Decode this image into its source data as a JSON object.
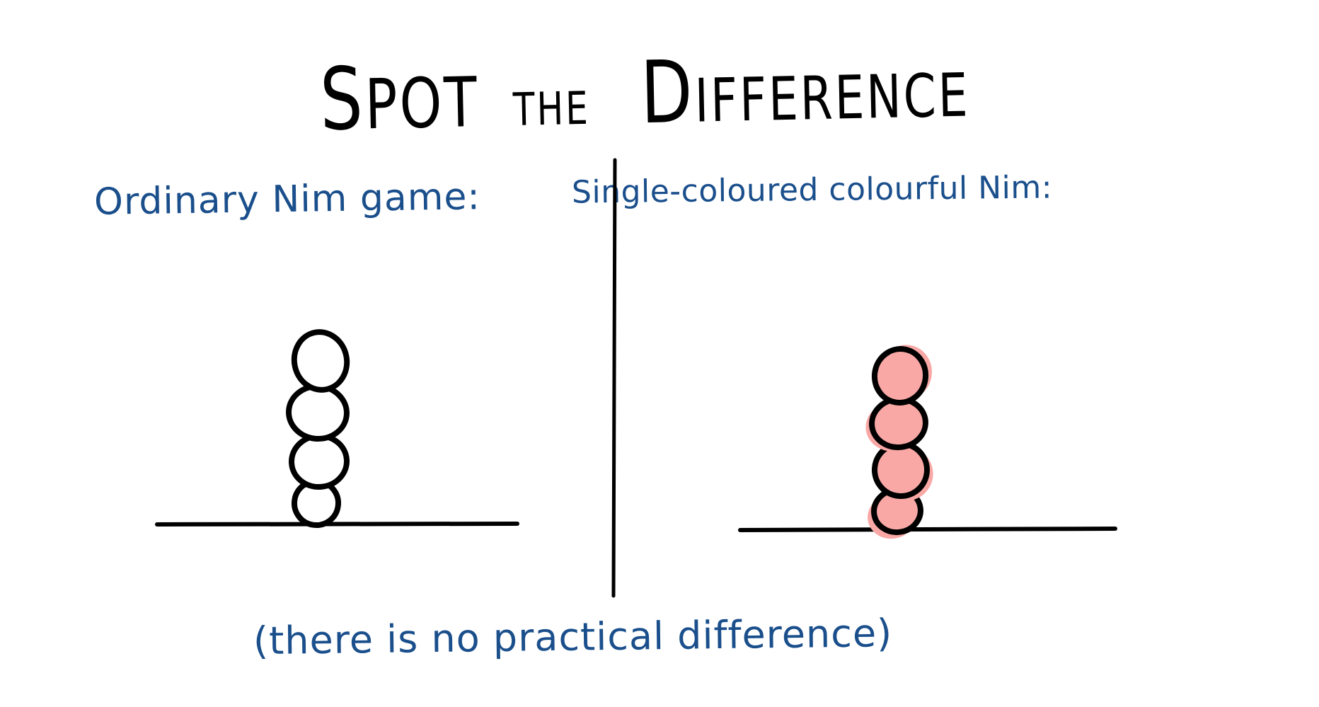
{
  "title": {
    "part1_initial": "S",
    "part1_rest": "POT",
    "part2": "THE",
    "part3_initial": "D",
    "part3_rest": "IFFERENCE"
  },
  "panels": {
    "left": {
      "label": "Ordinary Nim game:",
      "stack": {
        "stones": 4,
        "stone_style": "uncoloured"
      }
    },
    "right": {
      "label": "Single-coloured colourful Nim:",
      "stack": {
        "stones": 4,
        "stone_style": "coloured",
        "stone_color": "#f9a8a6"
      }
    }
  },
  "caption": "(there is no practical difference)",
  "colors": {
    "background": "#ffffff",
    "ink_black": "#000000",
    "ink_blue": "#1a4f8c",
    "stone_pink": "#f9a8a6"
  }
}
